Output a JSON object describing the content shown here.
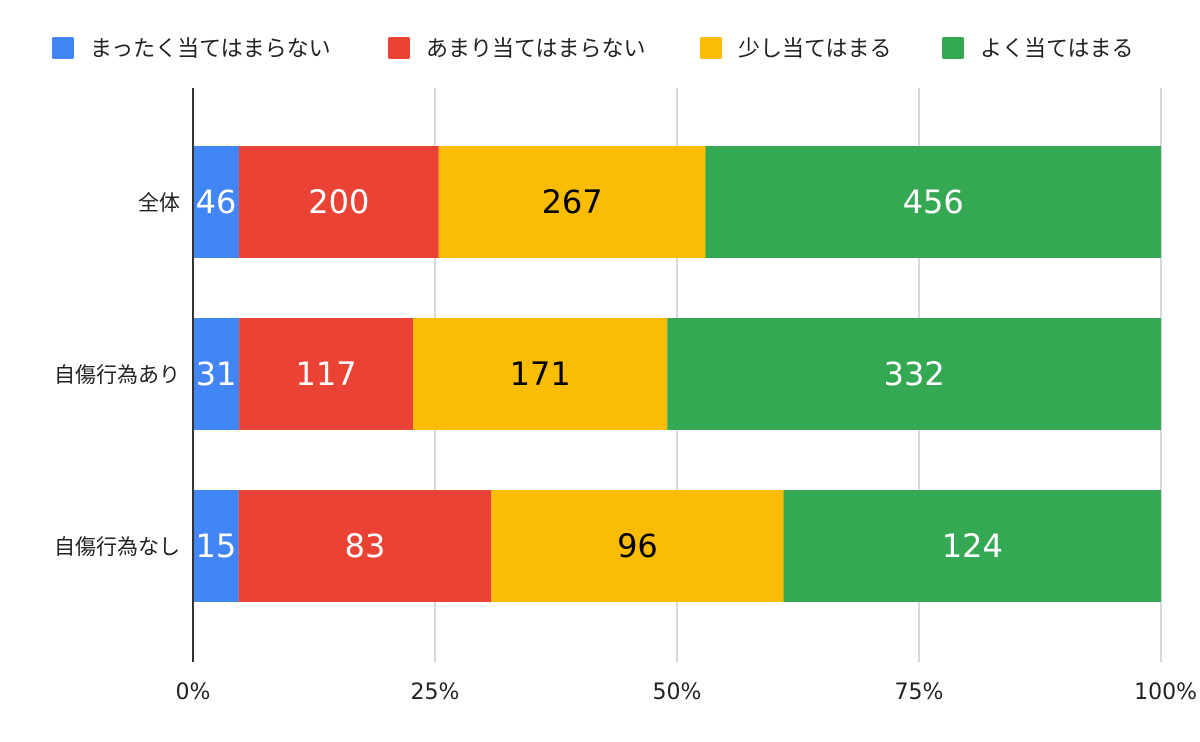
{
  "chart_data": {
    "type": "bar",
    "orientation": "horizontal",
    "stacked": "percent",
    "categories": [
      "全体",
      "自傷行為あり",
      "自傷行為なし"
    ],
    "series": [
      {
        "name": "まったく当てはまらない",
        "color": "#4285F4",
        "label_color": "#ffffff",
        "values": [
          46,
          31,
          15
        ]
      },
      {
        "name": "あまり当てはまらない",
        "color": "#EA4335",
        "label_color": "#ffffff",
        "values": [
          200,
          117,
          83
        ]
      },
      {
        "name": "少し当てはまる",
        "color": "#FBBC04",
        "label_color": "#000000",
        "values": [
          267,
          171,
          96
        ]
      },
      {
        "name": "よく当てはまる",
        "color": "#34A853",
        "label_color": "#ffffff",
        "values": [
          456,
          332,
          124
        ]
      }
    ],
    "x_ticks": [
      "0%",
      "25%",
      "50%",
      "75%",
      "100%"
    ],
    "xlim": [
      0,
      100
    ],
    "legend_position": "top",
    "grid": true
  }
}
